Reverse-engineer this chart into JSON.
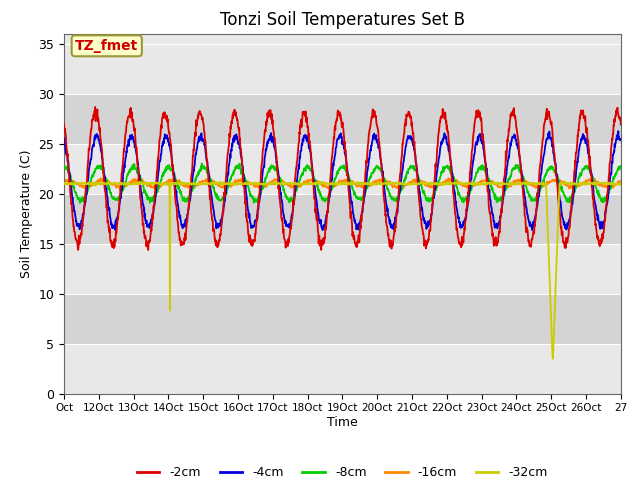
{
  "title": "Tonzi Soil Temperatures Set B",
  "xlabel": "Time",
  "ylabel": "Soil Temperature (C)",
  "ylim": [
    0,
    36
  ],
  "yticks": [
    0,
    5,
    10,
    15,
    20,
    25,
    30,
    35
  ],
  "annotation_text": "TZ_fmet",
  "legend_labels": [
    "-2cm",
    "-4cm",
    "-8cm",
    "-16cm",
    "-32cm"
  ],
  "legend_colors": [
    "#dd0000",
    "#0000dd",
    "#00cc00",
    "#ff8800",
    "#cccc00"
  ],
  "n_days": 16,
  "start_day": 11,
  "num_points_per_day": 96,
  "drop1_day": 3.05,
  "drop1_min": 8.3,
  "drop2_day": 13.85,
  "drop2_min": 3.5,
  "band_colors": [
    "#e8e8e8",
    "#d4d4d4"
  ],
  "band_yticks": [
    0,
    5,
    10,
    15,
    20,
    25,
    30,
    35
  ],
  "grid_color": "#ffffff"
}
